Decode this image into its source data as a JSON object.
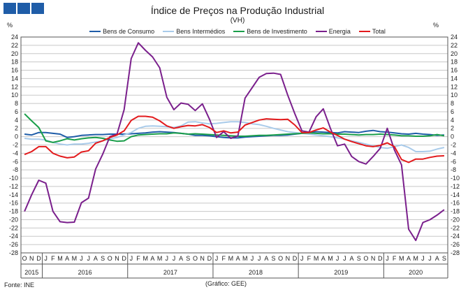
{
  "header": {
    "title": "Índice de Preços na Produção Industrial",
    "subtitle": "(VH)",
    "unit_left": "%",
    "unit_right": "%"
  },
  "footer": {
    "source": "Fonte: INE",
    "credit": "(Gráfico: GEE)"
  },
  "colors": {
    "grid": "#c8c8c8",
    "axis": "#555555",
    "logo": "#1f5da8"
  },
  "chart_data": {
    "type": "line",
    "title": "Índice de Preços na Produção Industrial",
    "subtitle": "(VH)",
    "ylabel": "%",
    "ylim": [
      -28,
      24
    ],
    "yticks": [
      -28,
      -26,
      -24,
      -22,
      -20,
      -18,
      -16,
      -14,
      -12,
      -10,
      -8,
      -6,
      -4,
      -2,
      0,
      2,
      4,
      6,
      8,
      10,
      12,
      14,
      16,
      18,
      20,
      22,
      24
    ],
    "grid": true,
    "legend_position": "top",
    "month_labels": [
      "O",
      "N",
      "D",
      "J",
      "F",
      "M",
      "A",
      "M",
      "J",
      "J",
      "A",
      "S",
      "O",
      "N",
      "D",
      "J",
      "F",
      "M",
      "A",
      "M",
      "J",
      "J",
      "A",
      "S",
      "O",
      "N",
      "D",
      "J",
      "F",
      "M",
      "A",
      "M",
      "J",
      "J",
      "A",
      "S",
      "O",
      "N",
      "D",
      "J",
      "F",
      "M",
      "A",
      "M",
      "J",
      "J",
      "A",
      "S",
      "O",
      "N",
      "D",
      "J",
      "F",
      "M",
      "A",
      "M",
      "J",
      "J",
      "A",
      "S"
    ],
    "years": [
      {
        "label": "2015",
        "start": 0,
        "end": 2
      },
      {
        "label": "2016",
        "start": 3,
        "end": 14
      },
      {
        "label": "2017",
        "start": 15,
        "end": 26
      },
      {
        "label": "2018",
        "start": 27,
        "end": 38
      },
      {
        "label": "2019",
        "start": 39,
        "end": 50
      },
      {
        "label": "2020",
        "start": 51,
        "end": 59
      }
    ],
    "series": [
      {
        "name": "Bens de Consumo",
        "color": "#1f5da8",
        "values": [
          0.6,
          0.4,
          1.0,
          1.0,
          0.8,
          0.6,
          -0.2,
          0.0,
          0.3,
          0.4,
          0.5,
          0.5,
          0.6,
          0.6,
          0.6,
          0.7,
          0.8,
          0.9,
          1.1,
          1.2,
          1.1,
          1.0,
          0.8,
          0.6,
          0.3,
          0.3,
          0.2,
          0.0,
          -0.2,
          -0.3,
          -0.3,
          -0.1,
          0.0,
          0.1,
          0.2,
          0.3,
          0.3,
          0.4,
          0.6,
          0.8,
          1.0,
          1.2,
          1.1,
          1.0,
          0.9,
          1.2,
          1.1,
          1.0,
          1.3,
          1.5,
          1.2,
          1.1,
          0.9,
          0.7,
          0.6,
          0.8,
          0.6,
          0.5,
          0.3,
          0.4
        ]
      },
      {
        "name": "Bens Intermédios",
        "color": "#a9cbea",
        "values": [
          -0.4,
          -0.6,
          -0.6,
          -0.8,
          -1.4,
          -1.8,
          -2.0,
          -1.8,
          -1.8,
          -1.6,
          -1.3,
          -1.0,
          -0.5,
          -0.2,
          0.4,
          1.0,
          2.0,
          2.5,
          2.6,
          2.5,
          2.4,
          2.2,
          2.6,
          3.5,
          3.6,
          3.3,
          3.1,
          3.2,
          3.4,
          3.6,
          3.6,
          3.4,
          3.1,
          2.9,
          2.5,
          2.0,
          1.6,
          1.2,
          1.0,
          0.8,
          0.6,
          0.4,
          0.2,
          0.0,
          -0.3,
          -0.6,
          -1.0,
          -1.4,
          -1.8,
          -2.2,
          -2.6,
          -2.8,
          -2.4,
          -2.0,
          -2.6,
          -3.6,
          -3.6,
          -3.5,
          -3.0,
          -2.6
        ]
      },
      {
        "name": "Bens de Investimento",
        "color": "#1a9e4a",
        "values": [
          5.5,
          3.8,
          2.2,
          -1.0,
          -1.4,
          -1.0,
          -0.5,
          -0.8,
          -0.5,
          -0.3,
          -0.2,
          -0.4,
          -0.8,
          -1.1,
          -1.0,
          0.0,
          0.4,
          0.5,
          0.6,
          0.7,
          0.7,
          0.9,
          0.8,
          0.6,
          0.7,
          0.6,
          0.5,
          0.4,
          0.3,
          0.2,
          0.1,
          0.1,
          0.2,
          0.3,
          0.3,
          0.4,
          0.5,
          0.6,
          0.7,
          0.8,
          0.9,
          0.8,
          0.7,
          0.7,
          0.6,
          0.6,
          0.5,
          0.4,
          0.5,
          0.5,
          0.6,
          0.5,
          0.4,
          0.2,
          0.2,
          0.1,
          0.1,
          0.2,
          0.5,
          0.2
        ]
      },
      {
        "name": "Energia",
        "color": "#7a1f8c",
        "values": [
          -18.0,
          -14.0,
          -10.5,
          -11.2,
          -18.0,
          -20.5,
          -20.7,
          -20.6,
          -15.9,
          -14.8,
          -7.8,
          -4.2,
          0.0,
          0.6,
          6.5,
          18.8,
          22.6,
          20.8,
          19.2,
          16.6,
          9.5,
          6.5,
          8.1,
          7.8,
          6.3,
          7.9,
          4.2,
          -0.2,
          1.2,
          -0.4,
          0.2,
          9.3,
          11.8,
          14.3,
          15.2,
          15.3,
          15.0,
          10.0,
          5.5,
          1.4,
          1.1,
          4.8,
          6.7,
          2.0,
          -2.2,
          -1.8,
          -4.8,
          -6.0,
          -6.6,
          -4.8,
          -2.8,
          2.0,
          -3.2,
          -6.8,
          -22.3,
          -25.0,
          -20.7,
          -20.0,
          -18.9,
          -17.6
        ]
      },
      {
        "name": "Total",
        "color": "#e31a1c",
        "values": [
          -4.3,
          -3.6,
          -2.4,
          -2.4,
          -4.0,
          -4.7,
          -5.1,
          -4.9,
          -3.7,
          -3.4,
          -1.6,
          -1.0,
          -0.2,
          0.4,
          1.4,
          3.9,
          4.9,
          4.9,
          4.7,
          3.8,
          2.6,
          2.0,
          2.4,
          2.7,
          2.6,
          2.9,
          2.2,
          1.0,
          1.4,
          0.9,
          1.1,
          2.8,
          3.4,
          4.0,
          4.3,
          4.2,
          4.1,
          4.2,
          2.8,
          1.0,
          1.0,
          1.6,
          2.1,
          1.1,
          0.3,
          -0.6,
          -1.2,
          -1.7,
          -2.2,
          -2.4,
          -2.1,
          -1.5,
          -2.4,
          -5.5,
          -6.2,
          -5.4,
          -5.4,
          -5.0,
          -4.7,
          -4.6
        ]
      }
    ]
  }
}
